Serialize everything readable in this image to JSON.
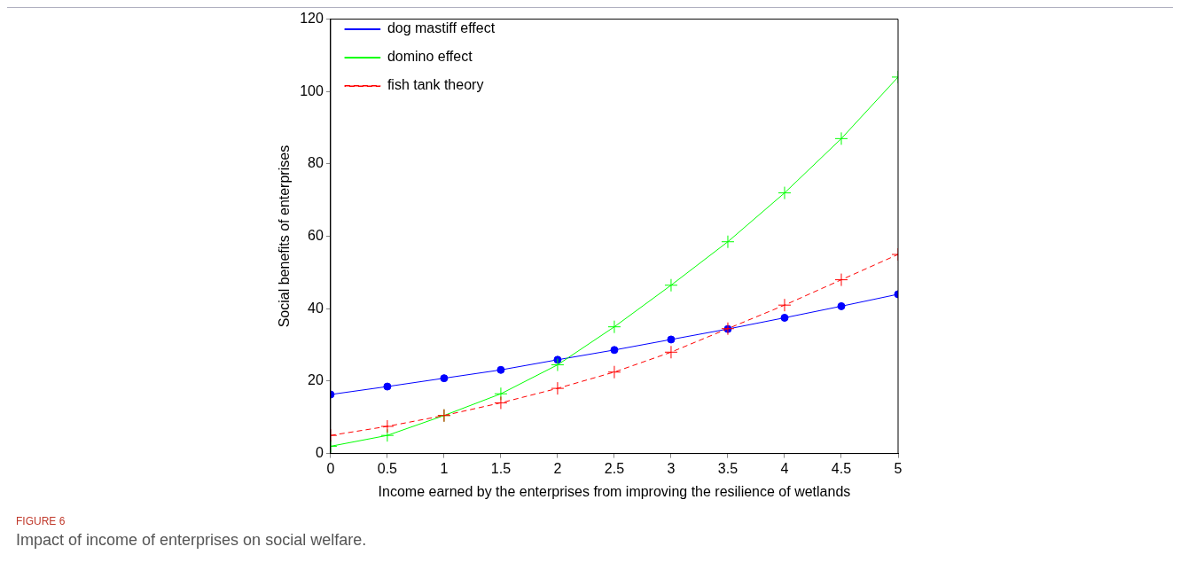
{
  "chart_data": {
    "type": "line",
    "xlabel": "Income earned by the enterprises from improving the resilience of wetlands",
    "ylabel": "Social benefits of enterprises",
    "x": [
      0,
      0.5,
      1,
      1.5,
      2,
      2.5,
      3,
      3.5,
      4,
      4.5,
      5
    ],
    "xlim": [
      0,
      5
    ],
    "xticks": [
      0,
      0.5,
      1,
      1.5,
      2,
      2.5,
      3,
      3.5,
      4,
      4.5,
      5
    ],
    "ylim": [
      0,
      120
    ],
    "yticks": [
      0,
      20,
      40,
      60,
      80,
      100,
      120
    ],
    "grid": false,
    "legend": "top left",
    "series": [
      {
        "name": "dog mastiff effect",
        "color": "#0000ff",
        "marker": "circle",
        "line_style": "solid",
        "values": [
          16.3,
          18.5,
          20.8,
          23.1,
          25.9,
          28.6,
          31.5,
          34.4,
          37.5,
          40.7,
          44
        ]
      },
      {
        "name": "domino effect",
        "color": "#00ff00",
        "marker": "cross",
        "line_style": "solid",
        "values": [
          2,
          5,
          10.5,
          16.5,
          24.5,
          35,
          46.5,
          58.5,
          72,
          87,
          104
        ]
      },
      {
        "name": "fish tank theory",
        "color": "#ff0000",
        "marker": "cross",
        "line_style": "dashed",
        "values": [
          5,
          7.5,
          10.5,
          14,
          18,
          22.5,
          28,
          34.5,
          41,
          48,
          55
        ]
      }
    ],
    "annotations": [
      "FIGURE 6",
      "Impact of income of enterprises on social welfare."
    ]
  }
}
